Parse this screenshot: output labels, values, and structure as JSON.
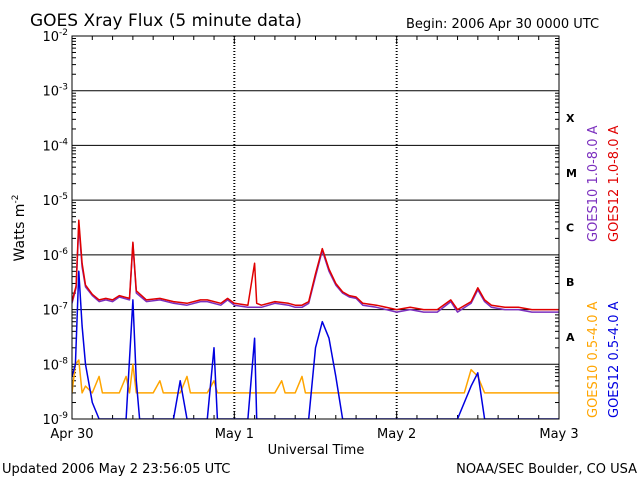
{
  "header": {
    "title": "GOES Xray Flux (5 minute data)",
    "begin": "Begin:  2006 Apr 30 0000 UTC"
  },
  "footer": {
    "updated": "Updated 2006 May  2 23:56:05 UTC",
    "credit": "NOAA/SEC Boulder, CO USA"
  },
  "chart_data": {
    "type": "line",
    "title": "GOES Xray Flux (5 minute data)",
    "xlabel": "Universal Time",
    "ylabel": "Watts m",
    "ylabel_sup": "-2",
    "yscale": "log",
    "ylim": [
      1e-09,
      0.01
    ],
    "xlim": [
      0,
      72
    ],
    "x_unit": "hours since 2006-04-30 00:00 UTC",
    "x_ticks": [
      {
        "x": 0,
        "label": "Apr 30"
      },
      {
        "x": 24,
        "label": "May 1"
      },
      {
        "x": 48,
        "label": "May 2"
      },
      {
        "x": 72,
        "label": "May 3"
      }
    ],
    "y_ticks": [
      {
        "exp": -9,
        "base": "10",
        "sup": "-9"
      },
      {
        "exp": -8,
        "base": "10",
        "sup": "-8"
      },
      {
        "exp": -7,
        "base": "10",
        "sup": "-7"
      },
      {
        "exp": -6,
        "base": "10",
        "sup": "-6"
      },
      {
        "exp": -5,
        "base": "10",
        "sup": "-5"
      },
      {
        "exp": -4,
        "base": "10",
        "sup": "-4"
      },
      {
        "exp": -3,
        "base": "10",
        "sup": "-3"
      },
      {
        "exp": -2,
        "base": "10",
        "sup": "-2"
      }
    ],
    "flare_classes": [
      {
        "label": "A",
        "exp": -7.5
      },
      {
        "label": "B",
        "exp": -6.5
      },
      {
        "label": "C",
        "exp": -5.5
      },
      {
        "label": "M",
        "exp": -4.5
      },
      {
        "label": "X",
        "exp": -3.5
      }
    ],
    "grid": true,
    "legend_position": "right (vertical)",
    "series": [
      {
        "name": "GOES10 1.0-8.0 A",
        "color": "#7B2FBE",
        "points": [
          [
            0,
            1.3e-07
          ],
          [
            0.6,
            2.5e-07
          ],
          [
            1.0,
            3.5e-06
          ],
          [
            1.5,
            6e-07
          ],
          [
            2.0,
            2.6e-07
          ],
          [
            3.0,
            1.8e-07
          ],
          [
            4.0,
            1.4e-07
          ],
          [
            5.0,
            1.5e-07
          ],
          [
            6.0,
            1.4e-07
          ],
          [
            7.0,
            1.7e-07
          ],
          [
            8.5,
            1.5e-07
          ],
          [
            9.0,
            1.6e-06
          ],
          [
            9.5,
            2e-07
          ],
          [
            11,
            1.4e-07
          ],
          [
            13,
            1.5e-07
          ],
          [
            15,
            1.3e-07
          ],
          [
            17,
            1.2e-07
          ],
          [
            19,
            1.4e-07
          ],
          [
            20,
            1.4e-07
          ],
          [
            22,
            1.2e-07
          ],
          [
            23,
            1.5e-07
          ],
          [
            24,
            1.2e-07
          ],
          [
            26,
            1.1e-07
          ],
          [
            28,
            1.1e-07
          ],
          [
            30,
            1.3e-07
          ],
          [
            32,
            1.2e-07
          ],
          [
            33,
            1.1e-07
          ],
          [
            34,
            1.1e-07
          ],
          [
            35,
            1.3e-07
          ],
          [
            36,
            4e-07
          ],
          [
            37,
            1.2e-06
          ],
          [
            38,
            5e-07
          ],
          [
            39,
            2.8e-07
          ],
          [
            40,
            2e-07
          ],
          [
            41,
            1.7e-07
          ],
          [
            42,
            1.6e-07
          ],
          [
            43,
            1.2e-07
          ],
          [
            45,
            1.1e-07
          ],
          [
            48,
            9e-08
          ],
          [
            50,
            1e-07
          ],
          [
            52,
            9e-08
          ],
          [
            54,
            9e-08
          ],
          [
            56,
            1.4e-07
          ],
          [
            57,
            9e-08
          ],
          [
            59,
            1.3e-07
          ],
          [
            60,
            2.3e-07
          ],
          [
            61,
            1.4e-07
          ],
          [
            62,
            1.1e-07
          ],
          [
            64,
            1e-07
          ],
          [
            66,
            1e-07
          ],
          [
            68,
            9e-08
          ],
          [
            70,
            9e-08
          ],
          [
            72,
            9e-08
          ]
        ]
      },
      {
        "name": "GOES12 1.0-8.0 A",
        "color": "#E00000",
        "points": [
          [
            0,
            1.4e-07
          ],
          [
            0.6,
            2.7e-07
          ],
          [
            1.0,
            4.3e-06
          ],
          [
            1.5,
            7e-07
          ],
          [
            2.0,
            2.8e-07
          ],
          [
            3.0,
            1.9e-07
          ],
          [
            4.0,
            1.5e-07
          ],
          [
            5.0,
            1.6e-07
          ],
          [
            6.0,
            1.5e-07
          ],
          [
            7.0,
            1.8e-07
          ],
          [
            8.5,
            1.6e-07
          ],
          [
            9.0,
            1.7e-06
          ],
          [
            9.5,
            2.2e-07
          ],
          [
            11,
            1.5e-07
          ],
          [
            13,
            1.6e-07
          ],
          [
            15,
            1.4e-07
          ],
          [
            17,
            1.3e-07
          ],
          [
            19,
            1.5e-07
          ],
          [
            20,
            1.5e-07
          ],
          [
            22,
            1.3e-07
          ],
          [
            23,
            1.6e-07
          ],
          [
            24,
            1.3e-07
          ],
          [
            26,
            1.2e-07
          ],
          [
            27,
            7e-07
          ],
          [
            27.3,
            1.3e-07
          ],
          [
            28,
            1.2e-07
          ],
          [
            30,
            1.4e-07
          ],
          [
            32,
            1.3e-07
          ],
          [
            33,
            1.2e-07
          ],
          [
            34,
            1.2e-07
          ],
          [
            35,
            1.4e-07
          ],
          [
            36,
            4.5e-07
          ],
          [
            37,
            1.3e-06
          ],
          [
            38,
            5.5e-07
          ],
          [
            39,
            3e-07
          ],
          [
            40,
            2.1e-07
          ],
          [
            41,
            1.8e-07
          ],
          [
            42,
            1.7e-07
          ],
          [
            43,
            1.3e-07
          ],
          [
            45,
            1.2e-07
          ],
          [
            48,
            1e-07
          ],
          [
            50,
            1.1e-07
          ],
          [
            52,
            1e-07
          ],
          [
            54,
            1e-07
          ],
          [
            56,
            1.5e-07
          ],
          [
            57,
            1e-07
          ],
          [
            59,
            1.4e-07
          ],
          [
            60,
            2.5e-07
          ],
          [
            61,
            1.5e-07
          ],
          [
            62,
            1.2e-07
          ],
          [
            64,
            1.1e-07
          ],
          [
            66,
            1.1e-07
          ],
          [
            68,
            1e-07
          ],
          [
            70,
            1e-07
          ],
          [
            72,
            1e-07
          ]
        ]
      },
      {
        "name": "GOES10 0.5-4.0 A",
        "color": "#FFA500",
        "points": [
          [
            0,
            3e-09
          ],
          [
            0.5,
            1e-08
          ],
          [
            1.0,
            1.2e-08
          ],
          [
            1.5,
            3e-09
          ],
          [
            2.0,
            4e-09
          ],
          [
            3,
            3e-09
          ],
          [
            4,
            6e-09
          ],
          [
            4.5,
            3e-09
          ],
          [
            7,
            3e-09
          ],
          [
            8,
            6e-09
          ],
          [
            8.5,
            3e-09
          ],
          [
            9,
            1e-08
          ],
          [
            9.5,
            3e-09
          ],
          [
            12,
            3e-09
          ],
          [
            13,
            5e-09
          ],
          [
            13.5,
            3e-09
          ],
          [
            16,
            3e-09
          ],
          [
            17,
            6e-09
          ],
          [
            17.5,
            3e-09
          ],
          [
            20,
            3e-09
          ],
          [
            21,
            5e-09
          ],
          [
            21.5,
            3e-09
          ],
          [
            24,
            3e-09
          ],
          [
            30,
            3e-09
          ],
          [
            31,
            5e-09
          ],
          [
            31.5,
            3e-09
          ],
          [
            33,
            3e-09
          ],
          [
            34,
            6e-09
          ],
          [
            34.5,
            3e-09
          ],
          [
            40,
            3e-09
          ],
          [
            45,
            3e-09
          ],
          [
            50,
            3e-09
          ],
          [
            56,
            3e-09
          ],
          [
            58,
            3e-09
          ],
          [
            59,
            8e-09
          ],
          [
            60,
            6e-09
          ],
          [
            61,
            3e-09
          ],
          [
            72,
            3e-09
          ]
        ]
      },
      {
        "name": "GOES12 0.5-4.0 A",
        "color": "#0000E0",
        "points": [
          [
            0,
            6e-09
          ],
          [
            0.5,
            1e-08
          ],
          [
            1.0,
            5e-07
          ],
          [
            1.5,
            5e-08
          ],
          [
            2,
            1e-08
          ],
          [
            3,
            2e-09
          ],
          [
            4,
            1e-09
          ],
          [
            6,
            1e-09
          ],
          [
            8,
            1e-09
          ],
          [
            9,
            1.5e-07
          ],
          [
            9.5,
            5e-09
          ],
          [
            10,
            1e-09
          ],
          [
            15,
            1e-09
          ],
          [
            16,
            5e-09
          ],
          [
            17,
            1e-09
          ],
          [
            20,
            1e-09
          ],
          [
            21,
            2e-08
          ],
          [
            21.5,
            1e-09
          ],
          [
            26,
            1e-09
          ],
          [
            27,
            3e-08
          ],
          [
            27.3,
            1e-09
          ],
          [
            30,
            1e-09
          ],
          [
            35,
            1e-09
          ],
          [
            36,
            2e-08
          ],
          [
            37,
            6e-08
          ],
          [
            38,
            3e-08
          ],
          [
            39,
            6e-09
          ],
          [
            40,
            1e-09
          ],
          [
            42,
            1e-09
          ],
          [
            57,
            1e-09
          ],
          [
            59,
            4e-09
          ],
          [
            60,
            7e-09
          ],
          [
            61,
            1e-09
          ],
          [
            72,
            1e-09
          ]
        ]
      }
    ]
  }
}
